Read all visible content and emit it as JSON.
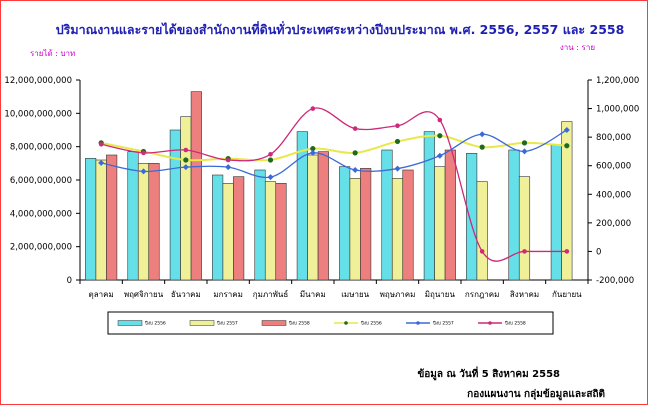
{
  "title": "ปริมาณงานและรายได้ของสำนักงานที่ดินทั่วประเทศระหว่างปีงบประมาณ พ.ศ. 2556, 2557 และ 2558",
  "left_unit": "รายได้ : บาท",
  "right_unit": "งาน : ราย",
  "footer_line1": "ข้อมูล ณ วันที่ 5  สิงหาคม 2558",
  "footer_line2": "กองแผนงาน กลุ่มข้อมูลและสถิติ",
  "colors": {
    "bar_2556": "#66e0e8",
    "bar_2557": "#f0f098",
    "bar_2558": "#ee7f7f",
    "line_2556": "#e8e84a",
    "line_2557": "#3a6ad8",
    "line_2558": "#cc2a7a",
    "marker_2556": "#1e6a1e"
  },
  "chart_data": {
    "type": "bar",
    "categories": [
      "ตุลาคม",
      "พฤศจิกายน",
      "ธันวาคม",
      "มกราคม",
      "กุมภาพันธ์",
      "มีนาคม",
      "เมษายน",
      "พฤษภาคม",
      "มิถุนายน",
      "กรกฎาคม",
      "สิงหาคม",
      "กันยายน"
    ],
    "y_left": {
      "min": 0,
      "max": 12000000000,
      "step": 2000000000,
      "ticks": [
        "0",
        "2,000,000,000",
        "4,000,000,000",
        "6,000,000,000",
        "8,000,000,000",
        "10,000,000,000",
        "12,000,000,000"
      ]
    },
    "y_right": {
      "min": -200000,
      "max": 1200000,
      "step": 200000,
      "ticks": [
        "-200,000",
        "0",
        "200,000",
        "400,000",
        "600,000",
        "800,000",
        "1,000,000",
        "1,200,000"
      ]
    },
    "series": [
      {
        "name": "ปีงบ 2556",
        "kind": "bar",
        "axis": "left",
        "values": [
          7300000000,
          7700000000,
          9000000000,
          6300000000,
          6600000000,
          8900000000,
          6800000000,
          7800000000,
          8900000000,
          7600000000,
          7800000000,
          8100000000
        ]
      },
      {
        "name": "ปีงบ 2557",
        "kind": "bar",
        "axis": "left",
        "values": [
          7200000000,
          7000000000,
          9800000000,
          5800000000,
          5900000000,
          7500000000,
          6100000000,
          6100000000,
          6800000000,
          5900000000,
          6200000000,
          9500000000
        ]
      },
      {
        "name": "ปีงบ 2558",
        "kind": "bar",
        "axis": "left",
        "values": [
          7500000000,
          7000000000,
          11300000000,
          6200000000,
          5800000000,
          7700000000,
          6700000000,
          6600000000,
          7800000000,
          null,
          null,
          null
        ]
      },
      {
        "name": "ปีงบ 2556",
        "kind": "line",
        "axis": "right",
        "values": [
          760000,
          700000,
          640000,
          650000,
          640000,
          720000,
          690000,
          770000,
          810000,
          730000,
          760000,
          740000
        ]
      },
      {
        "name": "ปีงบ 2557",
        "kind": "line",
        "axis": "right",
        "values": [
          620000,
          560000,
          590000,
          590000,
          520000,
          690000,
          570000,
          580000,
          670000,
          820000,
          700000,
          850000
        ]
      },
      {
        "name": "ปีงบ 2558",
        "kind": "line",
        "axis": "right",
        "values": [
          750000,
          690000,
          710000,
          640000,
          680000,
          1000000,
          860000,
          880000,
          920000,
          0,
          0,
          0
        ]
      }
    ],
    "legend_position": "bottom",
    "grid": false
  }
}
